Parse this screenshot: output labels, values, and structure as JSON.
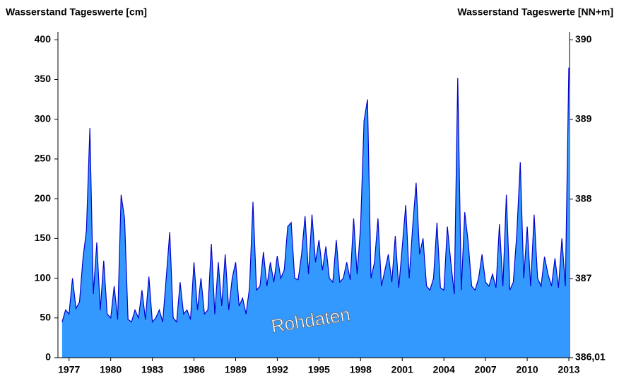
{
  "chart_data": {
    "type": "area",
    "title": "Wasserstand Tageswerte [cm]",
    "y2_title": "Wasserstand Tageswerte [NN+m]",
    "annotation": "Rohdaten",
    "x": [
      1976.5,
      1976.75,
      1977,
      1977.25,
      1977.5,
      1977.75,
      1978,
      1978.25,
      1978.5,
      1978.75,
      1979,
      1979.25,
      1979.5,
      1979.75,
      1980,
      1980.25,
      1980.5,
      1980.75,
      1981,
      1981.25,
      1981.5,
      1981.75,
      1982,
      1982.25,
      1982.5,
      1982.75,
      1983,
      1983.25,
      1983.5,
      1983.75,
      1984,
      1984.25,
      1984.5,
      1984.75,
      1985,
      1985.25,
      1985.5,
      1985.75,
      1986,
      1986.25,
      1986.5,
      1986.75,
      1987,
      1987.25,
      1987.5,
      1987.75,
      1988,
      1988.25,
      1988.5,
      1988.75,
      1989,
      1989.25,
      1989.5,
      1989.75,
      1990,
      1990.25,
      1990.5,
      1990.75,
      1991,
      1991.25,
      1991.5,
      1991.75,
      1992,
      1992.25,
      1992.5,
      1992.75,
      1993,
      1993.25,
      1993.5,
      1993.75,
      1994,
      1994.25,
      1994.5,
      1994.75,
      1995,
      1995.25,
      1995.5,
      1995.75,
      1996,
      1996.25,
      1996.5,
      1996.75,
      1997,
      1997.25,
      1997.5,
      1997.75,
      1998,
      1998.25,
      1998.5,
      1998.75,
      1999,
      1999.25,
      1999.5,
      1999.75,
      2000,
      2000.25,
      2000.5,
      2000.75,
      2001,
      2001.25,
      2001.5,
      2001.75,
      2002,
      2002.25,
      2002.5,
      2002.75,
      2003,
      2003.25,
      2003.5,
      2003.75,
      2004,
      2004.25,
      2004.5,
      2004.75,
      2005,
      2005.25,
      2005.5,
      2005.75,
      2006,
      2006.25,
      2006.5,
      2006.75,
      2007,
      2007.25,
      2007.5,
      2007.75,
      2008,
      2008.25,
      2008.5,
      2008.75,
      2009,
      2009.25,
      2009.5,
      2009.75,
      2010,
      2010.25,
      2010.5,
      2010.75,
      2011,
      2011.25,
      2011.5,
      2011.75,
      2012,
      2012.25,
      2012.5,
      2012.75,
      2013
    ],
    "series": [
      {
        "color": "#0000cc",
        "fill": "#3399ff",
        "values": [
          45,
          60,
          55,
          100,
          62,
          70,
          125,
          160,
          289,
          80,
          145,
          60,
          122,
          55,
          50,
          90,
          48,
          205,
          175,
          48,
          45,
          60,
          50,
          85,
          48,
          102,
          45,
          50,
          60,
          45,
          100,
          158,
          50,
          45,
          95,
          55,
          60,
          48,
          120,
          60,
          100,
          55,
          60,
          143,
          55,
          120,
          65,
          130,
          60,
          100,
          120,
          65,
          75,
          55,
          88,
          196,
          85,
          90,
          133,
          90,
          120,
          95,
          128,
          100,
          110,
          165,
          170,
          100,
          98,
          130,
          178,
          105,
          180,
          120,
          148,
          110,
          140,
          100,
          95,
          148,
          95,
          100,
          120,
          98,
          175,
          105,
          165,
          298,
          325,
          100,
          120,
          175,
          90,
          110,
          130,
          95,
          153,
          88,
          140,
          192,
          100,
          165,
          220,
          130,
          150,
          90,
          85,
          100,
          170,
          88,
          85,
          165,
          120,
          80,
          352,
          85,
          183,
          145,
          90,
          85,
          100,
          130,
          95,
          90,
          105,
          88,
          168,
          90,
          205,
          85,
          95,
          155,
          246,
          100,
          165,
          90,
          180,
          100,
          90,
          127,
          105,
          90,
          125,
          88,
          150,
          90,
          365
        ]
      }
    ],
    "xlim": [
      1976.2,
      2013.05
    ],
    "xticks": [
      1977,
      1980,
      1983,
      1986,
      1989,
      1992,
      1995,
      1998,
      2001,
      2004,
      2007,
      2010,
      2013
    ],
    "ylim": [
      0,
      410
    ],
    "yticks": [
      0,
      50,
      100,
      150,
      200,
      250,
      300,
      350,
      400
    ],
    "y2lim": [
      386.01,
      390.1
    ],
    "y2ticks": [
      {
        "value": 386.01,
        "label": "386,01"
      },
      387,
      388,
      389,
      390
    ]
  }
}
